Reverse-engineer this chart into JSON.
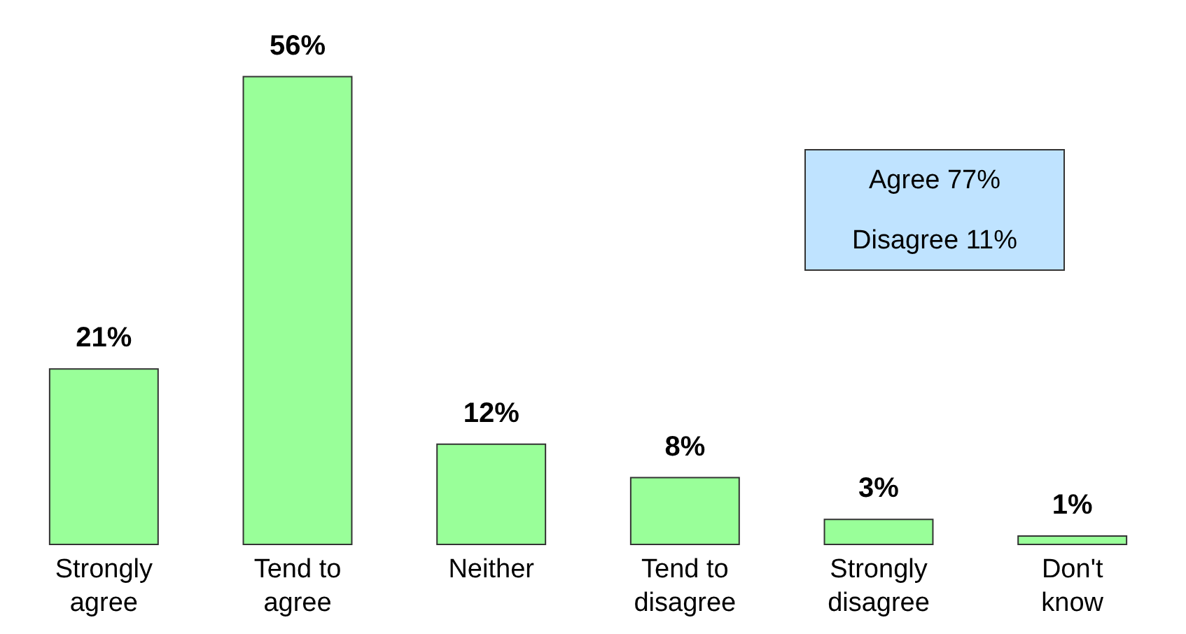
{
  "chart_data": {
    "type": "bar",
    "categories": [
      "Strongly\nagree",
      "Tend to\nagree",
      "Neither",
      "Tend to\ndisagree",
      "Strongly\ndisagree",
      "Don't\nknow"
    ],
    "values": [
      21,
      56,
      12,
      8,
      3,
      1
    ],
    "value_labels": [
      "21%",
      "56%",
      "12%",
      "8%",
      "3%",
      "1%"
    ],
    "color": "#99ff99",
    "annotations": [
      "Agree 77%",
      "Disagree 11%"
    ]
  }
}
